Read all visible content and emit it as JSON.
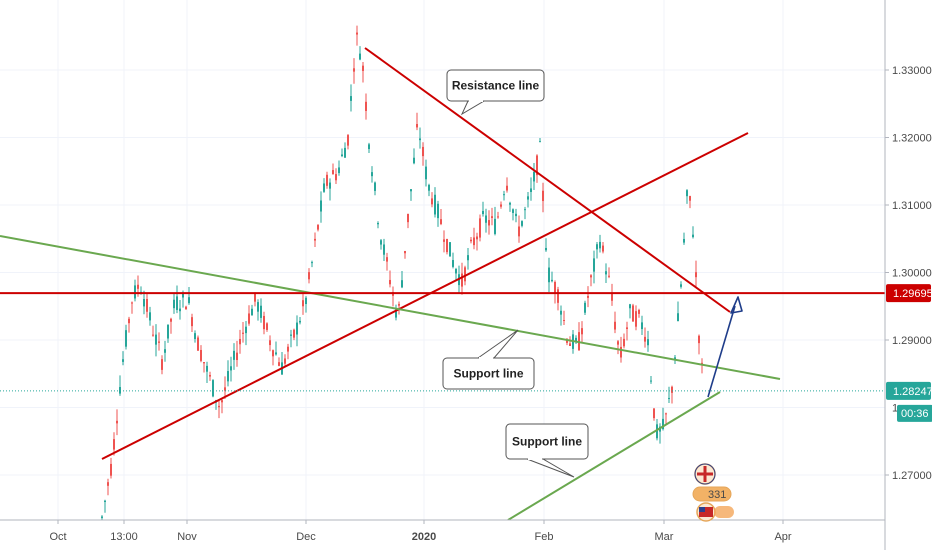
{
  "chart_data": {
    "type": "candlestick",
    "price_axis": {
      "ticks": [
        {
          "value": 1.33,
          "label": "1.33000"
        },
        {
          "value": 1.32,
          "label": "1.32000"
        },
        {
          "value": 1.31,
          "label": "1.31000"
        },
        {
          "value": 1.3,
          "label": "1.30000"
        },
        {
          "value": 1.29,
          "label": "1.29000"
        },
        {
          "value": 1.27,
          "label": "1.27000"
        }
      ],
      "partial_label": {
        "value": 1.28,
        "label": "1"
      },
      "range": [
        1.261,
        1.338
      ]
    },
    "time_axis": {
      "ticks": [
        {
          "label": "Oct",
          "bold": false
        },
        {
          "label": "13:00",
          "bold": false
        },
        {
          "label": "Nov",
          "bold": false
        },
        {
          "label": "Dec",
          "bold": false
        },
        {
          "label": "2020",
          "bold": true
        },
        {
          "label": "Feb",
          "bold": false
        },
        {
          "label": "Mar",
          "bold": false
        },
        {
          "label": "Apr",
          "bold": false
        }
      ]
    },
    "level_badges": [
      {
        "value": 1.29695,
        "label": "1.29695",
        "color": "#cc0000"
      },
      {
        "value": 1.28247,
        "label": "1.28247",
        "color": "#26a69a"
      }
    ],
    "countdown_badge": {
      "label": "00:36",
      "color": "#26a69a"
    },
    "horizontal_levels": [
      {
        "value": 1.29695,
        "color": "#cc0000",
        "style": "solid"
      },
      {
        "value": 1.28247,
        "color": "#26a69a",
        "style": "dotted"
      }
    ],
    "candles": {
      "up_color": "#26a69a",
      "down_color": "#ef5350"
    },
    "callouts": [
      {
        "text": "Resistance line"
      },
      {
        "text": "Support line"
      },
      {
        "text": "Support line"
      }
    ],
    "colors": {
      "resistance": "#cc0000",
      "support": "#6aa84f",
      "arrow": "#1f3d8a",
      "grid": "#f0f3fa"
    },
    "footer_text": "331"
  }
}
